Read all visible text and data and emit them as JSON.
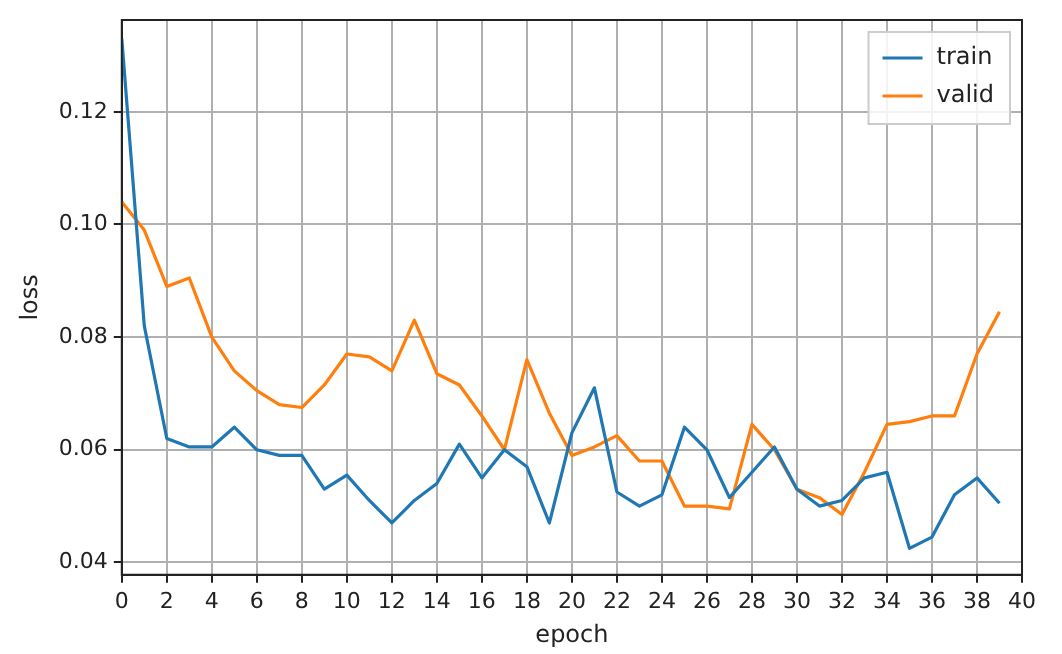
{
  "chart_data": {
    "type": "line",
    "xlabel": "epoch",
    "ylabel": "loss",
    "x": [
      0,
      1,
      2,
      3,
      4,
      5,
      6,
      7,
      8,
      9,
      10,
      11,
      12,
      13,
      14,
      15,
      16,
      17,
      18,
      19,
      20,
      21,
      22,
      23,
      24,
      25,
      26,
      27,
      28,
      29,
      30,
      31,
      32,
      33,
      34,
      35,
      36,
      37,
      38,
      39
    ],
    "series": [
      {
        "name": "train",
        "color": "#1f77b4",
        "values": [
          0.133,
          0.082,
          0.062,
          0.0605,
          0.0605,
          0.064,
          0.06,
          0.059,
          0.059,
          0.053,
          0.0555,
          0.051,
          0.047,
          0.051,
          0.054,
          0.061,
          0.055,
          0.06,
          0.057,
          0.047,
          0.063,
          0.071,
          0.0525,
          0.05,
          0.052,
          0.064,
          0.06,
          0.0515,
          0.056,
          0.0605,
          0.053,
          0.05,
          0.051,
          0.055,
          0.056,
          0.0425,
          0.0445,
          0.052,
          0.055,
          0.0505
        ]
      },
      {
        "name": "valid",
        "color": "#ff7f0e",
        "values": [
          0.104,
          0.099,
          0.089,
          0.0905,
          0.08,
          0.074,
          0.0705,
          0.068,
          0.0675,
          0.0715,
          0.077,
          0.0765,
          0.074,
          0.083,
          0.0735,
          0.0715,
          0.066,
          0.06,
          0.076,
          0.0665,
          0.059,
          0.0605,
          0.0625,
          0.058,
          0.058,
          0.05,
          0.05,
          0.0495,
          0.0645,
          0.06,
          0.053,
          0.0515,
          0.0485,
          0.056,
          0.0645,
          0.065,
          0.066,
          0.066,
          0.077,
          0.0845
        ]
      }
    ],
    "xlim": [
      0,
      40
    ],
    "xticks": [
      0,
      2,
      4,
      6,
      8,
      10,
      12,
      14,
      16,
      18,
      20,
      22,
      24,
      26,
      28,
      30,
      32,
      34,
      36,
      38,
      40
    ],
    "ylim": [
      0.0378,
      0.1363
    ],
    "yticks": [
      0.04,
      0.06,
      0.08,
      {
        "value": 0.1,
        "label": "0.10"
      },
      0.12
    ],
    "grid": true,
    "legend": "top right"
  }
}
